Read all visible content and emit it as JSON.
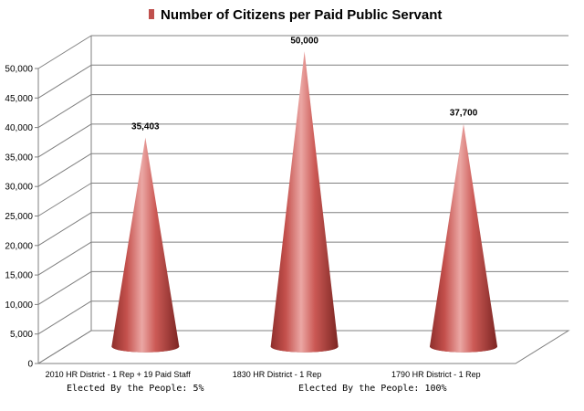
{
  "chart_data": {
    "type": "bar",
    "subtype": "3d-cone",
    "title": "Number of Citizens per Paid Public Servant",
    "legend": {
      "entries": [
        "Number of Citizens per Paid Public Servant"
      ],
      "placement": "top",
      "color": "#c0504d"
    },
    "categories": [
      "2010 HR District - 1 Rep + 19 Paid Staff",
      "1830 HR District - 1 Rep",
      "1790 HR District - 1 Rep"
    ],
    "series": [
      {
        "name": "Number of Citizens per Paid Public Servant",
        "values": [
          35403,
          50000,
          37700
        ],
        "color": "#c0504d"
      }
    ],
    "data_labels": [
      "35,403",
      "50,000",
      "37,700"
    ],
    "ylim": [
      0,
      50000
    ],
    "yticks": [
      0,
      5000,
      10000,
      15000,
      20000,
      25000,
      30000,
      35000,
      40000,
      45000,
      50000
    ],
    "ytick_labels": [
      "0",
      "5,000",
      "10,000",
      "15,000",
      "20,000",
      "25,000",
      "30,000",
      "35,000",
      "40,000",
      "45,000",
      "50,000"
    ],
    "grid": true,
    "xlabel": "",
    "ylabel": ""
  },
  "notes": {
    "left": "Elected By the People: 5%",
    "right": "Elected By the People: 100%"
  }
}
